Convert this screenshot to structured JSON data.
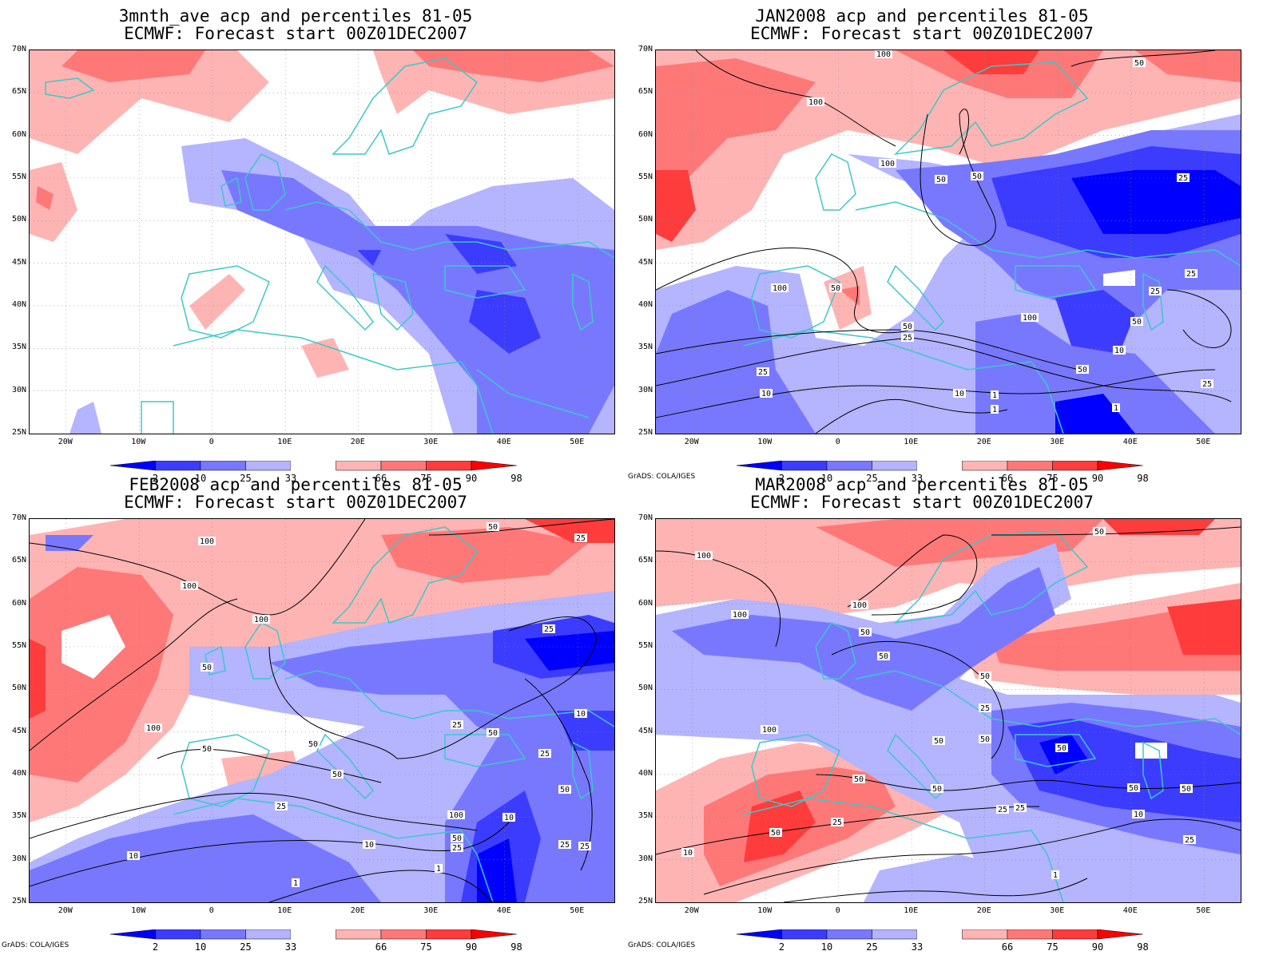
{
  "panels": [
    {
      "title_line1": "3mnth_ave acp and percentiles 81-05",
      "title_line2": "ECMWF: Forecast start 00Z01DEC2007",
      "credit": "",
      "contour_labels": []
    },
    {
      "title_line1": "JAN2008 acp and percentiles 81-05",
      "title_line2": "ECMWF: Forecast start 00Z01DEC2007",
      "credit": "GrADS: COLA/IGES",
      "contour_labels": [
        "100",
        "100",
        "100",
        "50",
        "50",
        "50",
        "25",
        "100",
        "50",
        "100",
        "50",
        "25",
        "50",
        "25",
        "10",
        "10",
        "25",
        "1",
        "10",
        "50",
        "25",
        "1",
        "1",
        "25"
      ]
    },
    {
      "title_line1": "FEB2008 acp and percentiles 81-05",
      "title_line2": "ECMWF: Forecast start 00Z01DEC2007",
      "credit": "GrADS: COLA/IGES",
      "contour_labels": [
        "50",
        "100",
        "25",
        "100",
        "100",
        "25",
        "50",
        "100",
        "50",
        "50",
        "25",
        "50",
        "50",
        "10",
        "25",
        "50",
        "25",
        "10",
        "100",
        "50",
        "25",
        "10",
        "25",
        "25",
        "1",
        "1",
        "10"
      ]
    },
    {
      "title_line1": "MAR2008 acp and percentiles 81-05",
      "title_line2": "ECMWF: Forecast start 00Z01DEC2007",
      "credit": "GrADS: COLA/IGES",
      "contour_labels": [
        "50",
        "100",
        "100",
        "100",
        "50",
        "50",
        "50",
        "25",
        "50",
        "100",
        "50",
        "50",
        "50",
        "50",
        "50",
        "25",
        "10",
        "50",
        "25",
        "25",
        "10",
        "25",
        "1",
        "50"
      ]
    }
  ],
  "axes": {
    "lat_labels": [
      "70N",
      "65N",
      "60N",
      "55N",
      "50N",
      "45N",
      "40N",
      "35N",
      "30N",
      "25N"
    ],
    "lon_labels": [
      "20W",
      "10W",
      "0",
      "10E",
      "20E",
      "30E",
      "40E",
      "50E"
    ]
  },
  "colorbar": {
    "labels": [
      "2",
      "10",
      "25",
      "33",
      "66",
      "75",
      "90",
      "98"
    ],
    "colors": [
      "#0000ff",
      "#3c3cff",
      "#7878ff",
      "#b4b4ff",
      "#ffffff",
      "#ffb4b4",
      "#ff7878",
      "#ff3c3c",
      "#ff0000"
    ]
  },
  "map_colors": {
    "coast": "#3cc8c8",
    "contour": "#000000",
    "grid": "#888888"
  }
}
